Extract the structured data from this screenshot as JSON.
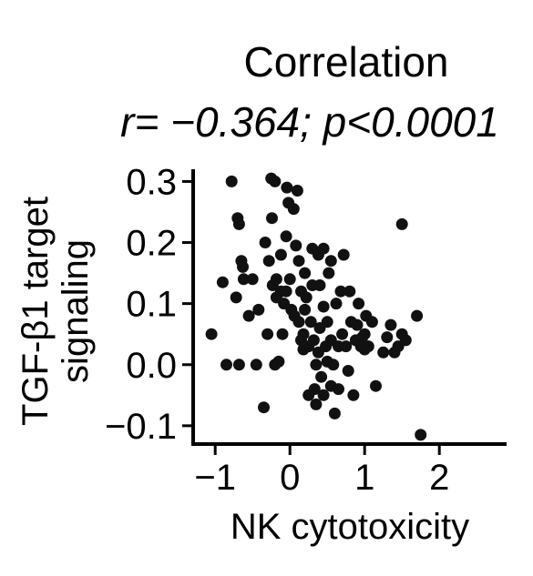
{
  "chart_data": {
    "type": "scatter",
    "title": "Correlation",
    "subtitle": "r= −0.364; p<0.0001",
    "xlabel": "NK cytotoxicity",
    "ylabel_lines": [
      "TGF-β1 target",
      "signaling"
    ],
    "xlim": [
      -1.1,
      2.9
    ],
    "ylim": [
      -0.13,
      0.32
    ],
    "xticks": [
      -1,
      0,
      1,
      2
    ],
    "xtick_labels": [
      "−1",
      "0",
      "1",
      "2"
    ],
    "yticks": [
      -0.1,
      0.0,
      0.1,
      0.2,
      0.3
    ],
    "ytick_labels": [
      "−0.1",
      "0.0",
      "0.1",
      "0.2",
      "0.3"
    ],
    "grid": false,
    "point_color": "#111111",
    "points": [
      [
        -1.05,
        0.05
      ],
      [
        -0.9,
        0.135
      ],
      [
        -0.85,
        0.0
      ],
      [
        -0.78,
        0.3
      ],
      [
        -0.72,
        0.11
      ],
      [
        -0.7,
        0.24
      ],
      [
        -0.68,
        0.23
      ],
      [
        -0.68,
        0.0
      ],
      [
        -0.65,
        0.17
      ],
      [
        -0.63,
        0.16
      ],
      [
        -0.62,
        0.14
      ],
      [
        -0.55,
        0.08
      ],
      [
        -0.5,
        0.14
      ],
      [
        -0.45,
        0.0
      ],
      [
        -0.42,
        0.09
      ],
      [
        -0.35,
        -0.07
      ],
      [
        -0.33,
        0.2
      ],
      [
        -0.3,
        0.05
      ],
      [
        -0.28,
        0.17
      ],
      [
        -0.25,
        0.305
      ],
      [
        -0.24,
        0.24
      ],
      [
        -0.23,
        0.13
      ],
      [
        -0.2,
        0.3
      ],
      [
        -0.2,
        0.0
      ],
      [
        -0.18,
        0.14
      ],
      [
        -0.18,
        0.11
      ],
      [
        -0.15,
        0.005
      ],
      [
        -0.12,
        0.18
      ],
      [
        -0.12,
        0.12
      ],
      [
        -0.1,
        0.05
      ],
      [
        -0.08,
        0.1
      ],
      [
        -0.05,
        0.12
      ],
      [
        -0.05,
        0.21
      ],
      [
        -0.04,
        0.29
      ],
      [
        -0.02,
        0.265
      ],
      [
        0.0,
        0.14
      ],
      [
        0.02,
        0.09
      ],
      [
        0.05,
        0.255
      ],
      [
        0.06,
        0.08
      ],
      [
        0.08,
        0.195
      ],
      [
        0.1,
        0.285
      ],
      [
        0.12,
        0.17
      ],
      [
        0.12,
        0.07
      ],
      [
        0.15,
        0.04
      ],
      [
        0.15,
        0.12
      ],
      [
        0.18,
        0.05
      ],
      [
        0.18,
        0.025
      ],
      [
        0.2,
        0.15
      ],
      [
        0.2,
        0.09
      ],
      [
        0.22,
        0.11
      ],
      [
        0.25,
        0.03
      ],
      [
        0.25,
        -0.05
      ],
      [
        0.28,
        0.07
      ],
      [
        0.3,
        0.19
      ],
      [
        0.3,
        0.13
      ],
      [
        0.32,
        0.04
      ],
      [
        0.33,
        -0.04
      ],
      [
        0.35,
        0.0
      ],
      [
        0.35,
        -0.065
      ],
      [
        0.38,
        0.18
      ],
      [
        0.38,
        0.02
      ],
      [
        0.4,
        0.06
      ],
      [
        0.4,
        0.13
      ],
      [
        0.42,
        -0.02
      ],
      [
        0.45,
        0.19
      ],
      [
        0.45,
        0.095
      ],
      [
        0.45,
        -0.05
      ],
      [
        0.48,
        0.03
      ],
      [
        0.5,
        0.07
      ],
      [
        0.5,
        0.005
      ],
      [
        0.52,
        0.15
      ],
      [
        0.55,
        0.17
      ],
      [
        0.55,
        0.04
      ],
      [
        0.55,
        -0.035
      ],
      [
        0.58,
        0.0
      ],
      [
        0.6,
        -0.08
      ],
      [
        0.62,
        0.1
      ],
      [
        0.65,
        0.03
      ],
      [
        0.65,
        -0.04
      ],
      [
        0.68,
        0.12
      ],
      [
        0.7,
        0.05
      ],
      [
        0.72,
        0.18
      ],
      [
        0.75,
        0.03
      ],
      [
        0.78,
        -0.01
      ],
      [
        0.8,
        0.12
      ],
      [
        0.82,
        0.07
      ],
      [
        0.85,
        -0.05
      ],
      [
        0.88,
        0.04
      ],
      [
        0.9,
        0.065
      ],
      [
        0.92,
        0.1
      ],
      [
        0.95,
        0.03
      ],
      [
        0.97,
        0.045
      ],
      [
        1.0,
        0.025
      ],
      [
        1.0,
        0.05
      ],
      [
        1.02,
        0.08
      ],
      [
        1.05,
        0.03
      ],
      [
        1.1,
        0.07
      ],
      [
        1.15,
        -0.035
      ],
      [
        1.25,
        0.02
      ],
      [
        1.3,
        0.045
      ],
      [
        1.35,
        0.065
      ],
      [
        1.4,
        0.02
      ],
      [
        1.45,
        0.03
      ],
      [
        1.5,
        0.23
      ],
      [
        1.5,
        0.05
      ],
      [
        1.55,
        0.04
      ],
      [
        1.7,
        0.08
      ],
      [
        1.75,
        -0.115
      ]
    ]
  }
}
